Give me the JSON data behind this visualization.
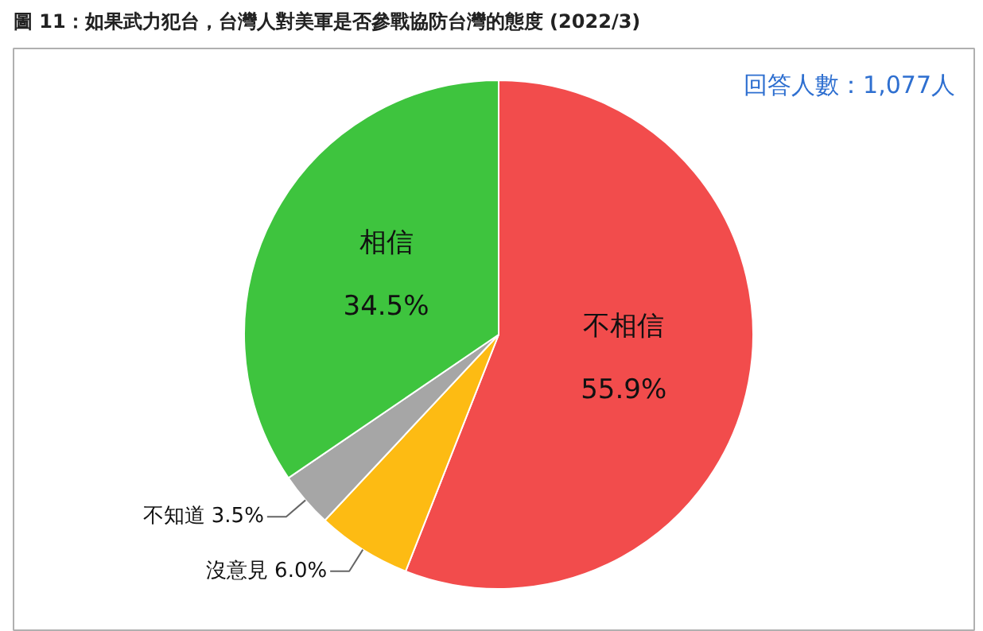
{
  "chart_data": {
    "type": "pie",
    "title": "圖 11：如果武力犯台，台灣人對美軍是否參戰協防台灣的態度 (2022/3)",
    "categories": [
      "不相信",
      "沒意見",
      "不知道",
      "相信"
    ],
    "values": [
      55.9,
      6.0,
      3.5,
      34.5
    ],
    "value_labels": [
      "55.9%",
      "6.0%",
      "3.5%",
      "34.5%"
    ],
    "colors": [
      "#f24c4c",
      "#fdbb13",
      "#a6a6a6",
      "#3ec43e"
    ],
    "annotations": [
      "回答人數：1,077人"
    ]
  }
}
